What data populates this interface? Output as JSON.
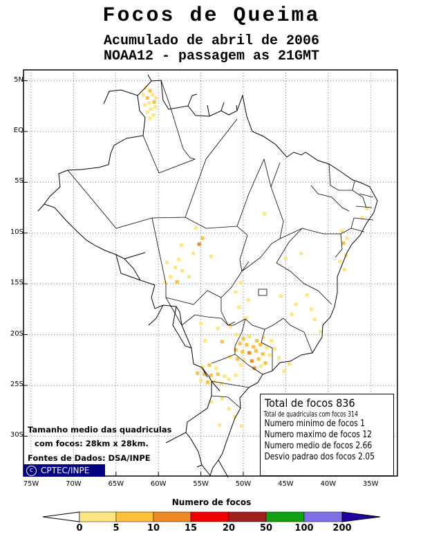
{
  "header": {
    "title": "Focos de Queima",
    "subtitle": "Acumulado de abril de 2006",
    "subtitle2": "NOAA12 - passagem as 21GMT"
  },
  "axes": {
    "lat_labels": [
      "5N",
      "EQ",
      "5S",
      "10S",
      "15S",
      "20S",
      "25S",
      "30S"
    ],
    "lon_labels": [
      "75W",
      "70W",
      "65W",
      "60W",
      "55W",
      "50W",
      "45W",
      "40W",
      "35W"
    ]
  },
  "notes": {
    "size_line1": "Tamanho medio das quadriculas",
    "size_line2": "com focos: 28km x 28km.",
    "source": "Fontes de Dados: DSA/INPE",
    "credit_symbol": "c",
    "credit": "CPTEC/INPE"
  },
  "stats": {
    "total": "Total de focos 836",
    "cells": "Total de quadriculas com focos 314",
    "min": "Numero minimo de focos 1",
    "max": "Numero maximo de focos 12",
    "mean": "Numero medio de focos 2.66",
    "std": "Desvio padrao dos focos 2.05"
  },
  "legend": {
    "title": "Numero de focos",
    "ticks": [
      "0",
      "5",
      "10",
      "15",
      "20",
      "50",
      "100",
      "200"
    ],
    "colors": [
      "#ffe680",
      "#ffc03c",
      "#f08a28",
      "#f00000",
      "#a02020",
      "#10a010",
      "#8070e8",
      "#2000a0"
    ]
  },
  "map_data": {
    "lon_range": [
      -76,
      -33
    ],
    "lat_range": [
      -34,
      6
    ],
    "graticule_step_deg": 5,
    "fire_cells": [
      [
        -61.5,
        4.3,
        1
      ],
      [
        -61.0,
        4.0,
        2
      ],
      [
        -61.8,
        3.6,
        1
      ],
      [
        -61.3,
        3.3,
        2
      ],
      [
        -60.7,
        3.6,
        1
      ],
      [
        -61.1,
        2.8,
        1
      ],
      [
        -60.5,
        2.9,
        2
      ],
      [
        -61.6,
        2.6,
        1
      ],
      [
        -60.9,
        2.2,
        1
      ],
      [
        -60.4,
        2.4,
        1
      ],
      [
        -61.3,
        1.9,
        1
      ],
      [
        -60.6,
        1.6,
        1
      ],
      [
        -61.0,
        1.3,
        1
      ],
      [
        -60.3,
        3.3,
        1
      ],
      [
        -55.6,
        -9.5,
        1
      ],
      [
        -54.8,
        -10.5,
        2
      ],
      [
        -57.3,
        -11.2,
        1
      ],
      [
        -55.2,
        -11.1,
        6
      ],
      [
        -53.8,
        -12.3,
        1
      ],
      [
        -55.9,
        -12.0,
        1
      ],
      [
        -57.6,
        -12.6,
        1
      ],
      [
        -59.0,
        -12.9,
        1
      ],
      [
        -58.0,
        -13.4,
        1
      ],
      [
        -57.2,
        -13.7,
        1
      ],
      [
        -58.6,
        -14.3,
        1
      ],
      [
        -57.8,
        -14.8,
        2
      ],
      [
        -59.2,
        -14.9,
        1
      ],
      [
        -56.4,
        -14.3,
        1
      ],
      [
        -47.5,
        -8.1,
        1
      ],
      [
        -45.0,
        -12.5,
        1
      ],
      [
        -43.2,
        -12.0,
        1
      ],
      [
        -38.4,
        -9.8,
        1
      ],
      [
        -37.8,
        -10.5,
        1
      ],
      [
        -38.2,
        -11.0,
        2
      ],
      [
        -37.9,
        -12.2,
        1
      ],
      [
        -38.6,
        -12.8,
        1
      ],
      [
        -38.1,
        -13.6,
        1
      ],
      [
        -35.4,
        -7.6,
        1
      ],
      [
        -36.0,
        -8.5,
        1
      ],
      [
        -50.3,
        -14.9,
        1
      ],
      [
        -50.9,
        -15.8,
        1
      ],
      [
        -49.4,
        -16.6,
        1
      ],
      [
        -50.5,
        -17.3,
        1
      ],
      [
        -49.8,
        -18.4,
        1
      ],
      [
        -45.6,
        -16.2,
        1
      ],
      [
        -43.8,
        -17.0,
        1
      ],
      [
        -42.5,
        -16.1,
        1
      ],
      [
        -44.3,
        -18.0,
        1
      ],
      [
        -41.6,
        -18.5,
        1
      ],
      [
        -40.9,
        -19.7,
        1
      ],
      [
        -42.0,
        -17.5,
        1
      ],
      [
        -55.0,
        -18.9,
        1
      ],
      [
        -54.5,
        -20.6,
        1
      ],
      [
        -53.0,
        -19.4,
        1
      ],
      [
        -51.5,
        -19.2,
        1
      ],
      [
        -52.5,
        -20.7,
        2
      ],
      [
        -50.8,
        -20.0,
        1
      ],
      [
        -50.0,
        -20.4,
        2
      ],
      [
        -49.3,
        -20.2,
        1
      ],
      [
        -48.4,
        -20.6,
        2
      ],
      [
        -47.6,
        -20.3,
        1
      ],
      [
        -46.7,
        -20.6,
        1
      ],
      [
        -50.4,
        -20.9,
        3
      ],
      [
        -49.6,
        -21.0,
        4
      ],
      [
        -48.8,
        -21.2,
        2
      ],
      [
        -48.0,
        -21.0,
        3
      ],
      [
        -47.2,
        -21.3,
        1
      ],
      [
        -50.9,
        -21.5,
        2
      ],
      [
        -50.1,
        -21.7,
        3
      ],
      [
        -49.3,
        -21.8,
        5
      ],
      [
        -48.5,
        -21.6,
        2
      ],
      [
        -47.7,
        -21.9,
        4
      ],
      [
        -46.9,
        -22.0,
        1
      ],
      [
        -51.6,
        -22.2,
        1
      ],
      [
        -50.7,
        -22.4,
        2
      ],
      [
        -49.9,
        -22.5,
        1
      ],
      [
        -49.0,
        -22.6,
        6
      ],
      [
        -48.2,
        -22.4,
        2
      ],
      [
        -47.4,
        -22.8,
        3
      ],
      [
        -50.3,
        -23.0,
        1
      ],
      [
        -48.7,
        -23.3,
        7
      ],
      [
        -47.9,
        -23.1,
        1
      ],
      [
        -46.3,
        -21.4,
        1
      ],
      [
        -45.8,
        -22.3,
        1
      ],
      [
        -54.8,
        -23.2,
        1
      ],
      [
        -54.0,
        -23.0,
        2
      ],
      [
        -53.2,
        -23.3,
        1
      ],
      [
        -55.4,
        -23.8,
        2
      ],
      [
        -54.6,
        -23.9,
        4
      ],
      [
        -53.8,
        -24.0,
        3
      ],
      [
        -53.0,
        -23.9,
        2
      ],
      [
        -52.2,
        -24.1,
        1
      ],
      [
        -55.0,
        -24.5,
        1
      ],
      [
        -54.2,
        -24.7,
        2
      ],
      [
        -53.4,
        -24.6,
        1
      ],
      [
        -52.6,
        -24.8,
        1
      ],
      [
        -51.7,
        -24.4,
        1
      ],
      [
        -50.9,
        -24.0,
        1
      ],
      [
        -52.5,
        -26.3,
        1
      ],
      [
        -51.7,
        -27.3,
        1
      ],
      [
        -53.8,
        -26.6,
        1
      ],
      [
        -51.0,
        -28.1,
        1
      ],
      [
        -50.2,
        -29.0,
        1
      ],
      [
        -52.8,
        -28.9,
        1
      ],
      [
        -45.2,
        -23.6,
        1
      ],
      [
        -44.6,
        -22.9,
        1
      ]
    ]
  }
}
